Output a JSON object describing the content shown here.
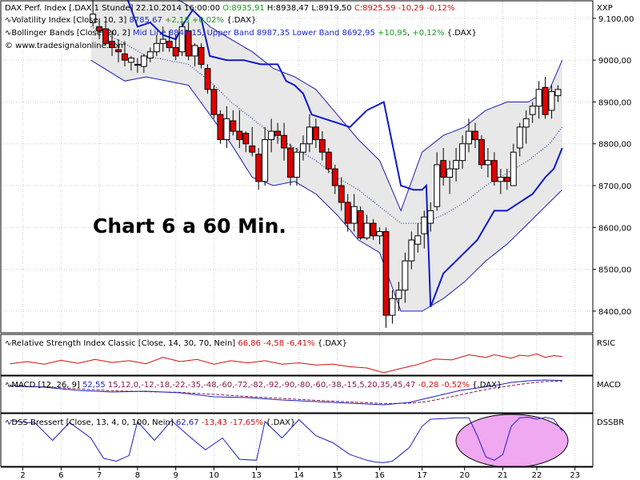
{
  "chart_data": {
    "type": "candlestick",
    "symbol": "DAX Perf. Index [.DAX  1 Stunde]",
    "timestamp": "22.10.2014 16:00:00",
    "ohlc_text": {
      "open": "O:8935,91",
      "high": "H:8938,47",
      "low": "L:8919,50",
      "close": "C:8925,59",
      "change": "-10,29",
      "change_pct": "-0,12%"
    },
    "indicator_lines": [
      {
        "name": "Volatility Index [Close, 10, 3]",
        "value": "8785,67",
        "change": "+2,18",
        "change_pct": "+0,02%",
        "symbol": "{.DAX}"
      },
      {
        "name": "Bollinger Bands [Close, 20, 2]",
        "mid": "Mid Line 8840,15",
        "upper": "Upper Band 8987,35",
        "lower": "Lower Band 8692,95",
        "change": "+10,95",
        "change_pct": "+0,12%",
        "symbol": "{.DAX}"
      }
    ],
    "copyright": "© www.tradesignalonline.com",
    "annotation": "Chart 6 a 60 Min.",
    "price_axis": {
      "label": "XXP",
      "ylim": [
        8350,
        9140
      ],
      "ticks": [
        "9.100,00",
        "9000,00",
        "8900,00",
        "8800,00",
        "8700,00",
        "8600,00",
        "8500,00",
        "8400,00"
      ],
      "tick_values": [
        9100,
        9000,
        8900,
        8800,
        8700,
        8600,
        8500,
        8400
      ]
    },
    "x_axis": {
      "ticks": [
        "2",
        "6",
        "7",
        "8",
        "9",
        "10",
        "13",
        "14",
        "15",
        "16",
        "17",
        "20",
        "21",
        "22",
        "23"
      ],
      "tick_x": [
        1,
        10,
        19,
        28,
        37,
        46,
        56,
        66,
        75,
        85,
        95,
        105,
        114,
        122,
        131
      ],
      "range": [
        -4,
        135
      ]
    },
    "candles": [
      {
        "x": 17.5,
        "o": 9090,
        "h": 9150,
        "l": 9080,
        "c": 9110
      },
      {
        "x": 19,
        "o": 9080,
        "h": 9100,
        "l": 9050,
        "c": 9070
      },
      {
        "x": 20.5,
        "o": 9075,
        "h": 9090,
        "l": 9035,
        "c": 9040
      },
      {
        "x": 22,
        "o": 9045,
        "h": 9070,
        "l": 9010,
        "c": 9030
      },
      {
        "x": 23.5,
        "o": 9025,
        "h": 9050,
        "l": 8995,
        "c": 9020
      },
      {
        "x": 25,
        "o": 9015,
        "h": 9045,
        "l": 8985,
        "c": 9000
      },
      {
        "x": 26.5,
        "o": 8995,
        "h": 9010,
        "l": 8975,
        "c": 9005
      },
      {
        "x": 28,
        "o": 8990,
        "h": 9005,
        "l": 8970,
        "c": 8990
      },
      {
        "x": 29.5,
        "o": 8985,
        "h": 9015,
        "l": 8970,
        "c": 9010
      },
      {
        "x": 31,
        "o": 9005,
        "h": 9030,
        "l": 8995,
        "c": 9020
      },
      {
        "x": 32.5,
        "o": 9020,
        "h": 9060,
        "l": 9010,
        "c": 9040
      },
      {
        "x": 34,
        "o": 9040,
        "h": 9080,
        "l": 9020,
        "c": 9050
      },
      {
        "x": 35.5,
        "o": 9045,
        "h": 9070,
        "l": 9020,
        "c": 9030
      },
      {
        "x": 37,
        "o": 9030,
        "h": 9060,
        "l": 9000,
        "c": 9010
      },
      {
        "x": 38.5,
        "o": 9020,
        "h": 9090,
        "l": 9010,
        "c": 9080
      },
      {
        "x": 40,
        "o": 9070,
        "h": 9090,
        "l": 9000,
        "c": 9010
      },
      {
        "x": 41.5,
        "o": 9010,
        "h": 9040,
        "l": 8985,
        "c": 9035
      },
      {
        "x": 43,
        "o": 9030,
        "h": 9040,
        "l": 8980,
        "c": 8990
      },
      {
        "x": 44.5,
        "o": 8980,
        "h": 8990,
        "l": 8920,
        "c": 8930
      },
      {
        "x": 46,
        "o": 8930,
        "h": 8940,
        "l": 8860,
        "c": 8870
      },
      {
        "x": 47.5,
        "o": 8870,
        "h": 8880,
        "l": 8800,
        "c": 8810
      },
      {
        "x": 49,
        "o": 8810,
        "h": 8890,
        "l": 8790,
        "c": 8860
      },
      {
        "x": 50.5,
        "o": 8855,
        "h": 8880,
        "l": 8820,
        "c": 8830
      },
      {
        "x": 52,
        "o": 8830,
        "h": 8880,
        "l": 8790,
        "c": 8810
      },
      {
        "x": 53.5,
        "o": 8825,
        "h": 8830,
        "l": 8780,
        "c": 8800
      },
      {
        "x": 55,
        "o": 8795,
        "h": 8840,
        "l": 8770,
        "c": 8780
      },
      {
        "x": 56.5,
        "o": 8775,
        "h": 8790,
        "l": 8690,
        "c": 8710
      },
      {
        "x": 58,
        "o": 8710,
        "h": 8840,
        "l": 8700,
        "c": 8810
      },
      {
        "x": 59.5,
        "o": 8810,
        "h": 8860,
        "l": 8780,
        "c": 8830
      },
      {
        "x": 61,
        "o": 8830,
        "h": 8850,
        "l": 8800,
        "c": 8820
      },
      {
        "x": 62.5,
        "o": 8820,
        "h": 8850,
        "l": 8760,
        "c": 8790
      },
      {
        "x": 64,
        "o": 8790,
        "h": 8800,
        "l": 8700,
        "c": 8720
      },
      {
        "x": 65.5,
        "o": 8720,
        "h": 8790,
        "l": 8700,
        "c": 8780
      },
      {
        "x": 67,
        "o": 8780,
        "h": 8820,
        "l": 8760,
        "c": 8800
      },
      {
        "x": 68.5,
        "o": 8800,
        "h": 8870,
        "l": 8780,
        "c": 8840
      },
      {
        "x": 70,
        "o": 8840,
        "h": 8860,
        "l": 8790,
        "c": 8810
      },
      {
        "x": 71.5,
        "o": 8810,
        "h": 8830,
        "l": 8760,
        "c": 8780
      },
      {
        "x": 73,
        "o": 8780,
        "h": 8790,
        "l": 8730,
        "c": 8740
      },
      {
        "x": 74.5,
        "o": 8740,
        "h": 8750,
        "l": 8680,
        "c": 8700
      },
      {
        "x": 76,
        "o": 8700,
        "h": 8720,
        "l": 8640,
        "c": 8660
      },
      {
        "x": 77.5,
        "o": 8660,
        "h": 8680,
        "l": 8590,
        "c": 8610
      },
      {
        "x": 79,
        "o": 8610,
        "h": 8680,
        "l": 8590,
        "c": 8650
      },
      {
        "x": 80.5,
        "o": 8640,
        "h": 8650,
        "l": 8570,
        "c": 8575
      },
      {
        "x": 82,
        "o": 8575,
        "h": 8630,
        "l": 8570,
        "c": 8610
      },
      {
        "x": 83.5,
        "o": 8610,
        "h": 8620,
        "l": 8570,
        "c": 8580
      },
      {
        "x": 85,
        "o": 8580,
        "h": 8600,
        "l": 8560,
        "c": 8590
      },
      {
        "x": 86.5,
        "o": 8590,
        "h": 8600,
        "l": 8360,
        "c": 8390
      },
      {
        "x": 88,
        "o": 8390,
        "h": 8450,
        "l": 8370,
        "c": 8430
      },
      {
        "x": 89.5,
        "o": 8430,
        "h": 8470,
        "l": 8400,
        "c": 8450
      },
      {
        "x": 91,
        "o": 8450,
        "h": 8540,
        "l": 8420,
        "c": 8520
      },
      {
        "x": 92.5,
        "o": 8520,
        "h": 8590,
        "l": 8500,
        "c": 8570
      },
      {
        "x": 94,
        "o": 8560,
        "h": 8610,
        "l": 8540,
        "c": 8580
      },
      {
        "x": 95.5,
        "o": 8585,
        "h": 8640,
        "l": 8550,
        "c": 8625
      },
      {
        "x": 97,
        "o": 8610,
        "h": 8660,
        "l": 8590,
        "c": 8640
      },
      {
        "x": 98.5,
        "o": 8650,
        "h": 8780,
        "l": 8640,
        "c": 8750
      },
      {
        "x": 100,
        "o": 8760,
        "h": 8790,
        "l": 8700,
        "c": 8720
      },
      {
        "x": 101.5,
        "o": 8720,
        "h": 8760,
        "l": 8680,
        "c": 8740
      },
      {
        "x": 103,
        "o": 8740,
        "h": 8790,
        "l": 8710,
        "c": 8760
      },
      {
        "x": 104.5,
        "o": 8760,
        "h": 8820,
        "l": 8740,
        "c": 8800
      },
      {
        "x": 106,
        "o": 8800,
        "h": 8860,
        "l": 8780,
        "c": 8830
      },
      {
        "x": 107.5,
        "o": 8830,
        "h": 8850,
        "l": 8790,
        "c": 8810
      },
      {
        "x": 109,
        "o": 8810,
        "h": 8820,
        "l": 8740,
        "c": 8750
      },
      {
        "x": 110.5,
        "o": 8750,
        "h": 8790,
        "l": 8720,
        "c": 8760
      },
      {
        "x": 112,
        "o": 8760,
        "h": 8780,
        "l": 8700,
        "c": 8710
      },
      {
        "x": 113.5,
        "o": 8710,
        "h": 8740,
        "l": 8680,
        "c": 8720
      },
      {
        "x": 115,
        "o": 8720,
        "h": 8740,
        "l": 8690,
        "c": 8710
      },
      {
        "x": 116.5,
        "o": 8700,
        "h": 8800,
        "l": 8700,
        "c": 8780
      },
      {
        "x": 118,
        "o": 8790,
        "h": 8850,
        "l": 8770,
        "c": 8840
      },
      {
        "x": 119.5,
        "o": 8840,
        "h": 8880,
        "l": 8800,
        "c": 8860
      },
      {
        "x": 121,
        "o": 8870,
        "h": 8900,
        "l": 8850,
        "c": 8890
      },
      {
        "x": 122.5,
        "o": 8890,
        "h": 8950,
        "l": 8860,
        "c": 8930
      },
      {
        "x": 124,
        "o": 8935,
        "h": 8960,
        "l": 8860,
        "c": 8870
      },
      {
        "x": 125.5,
        "o": 8880,
        "h": 8940,
        "l": 8860,
        "c": 8925
      },
      {
        "x": 127,
        "o": 8915,
        "h": 8940,
        "l": 8900,
        "c": 8930
      }
    ],
    "bollinger": {
      "x": [
        17,
        25,
        30,
        35,
        40,
        45,
        50,
        55,
        60,
        65,
        70,
        75,
        80,
        85,
        90,
        95,
        100,
        105,
        110,
        115,
        120,
        125,
        128
      ],
      "upper": [
        9150,
        9160,
        9165,
        9160,
        9130,
        9080,
        9050,
        9020,
        8980,
        8960,
        8930,
        8870,
        8810,
        8760,
        8640,
        8780,
        8820,
        8840,
        8880,
        8900,
        8900,
        8930,
        9000
      ],
      "mid": [
        9080,
        9040,
        9010,
        9000,
        8990,
        8950,
        8900,
        8860,
        8820,
        8790,
        8760,
        8720,
        8690,
        8650,
        8610,
        8610,
        8630,
        8660,
        8700,
        8730,
        8760,
        8800,
        8840
      ],
      "lower": [
        9000,
        8950,
        8960,
        8950,
        8940,
        8870,
        8800,
        8720,
        8700,
        8710,
        8680,
        8630,
        8570,
        8540,
        8400,
        8400,
        8430,
        8470,
        8520,
        8560,
        8610,
        8660,
        8690
      ]
    },
    "volatility_index": {
      "x": [
        17,
        23,
        28,
        31,
        34,
        37,
        39,
        41,
        43,
        45,
        49,
        53,
        57,
        61,
        63,
        65,
        67,
        69,
        72,
        75,
        78,
        82,
        86,
        90,
        93,
        95,
        96,
        97,
        100,
        104,
        108,
        112,
        115,
        118,
        121,
        124,
        126,
        128
      ],
      "values": [
        9210,
        9220,
        9080,
        9090,
        9060,
        9050,
        9090,
        9120,
        9100,
        9010,
        9000,
        9000,
        8990,
        8990,
        8950,
        8940,
        8920,
        8870,
        8860,
        8850,
        8840,
        8880,
        8900,
        8700,
        8690,
        8690,
        8700,
        8410,
        8490,
        8530,
        8570,
        8640,
        8640,
        8660,
        8680,
        8720,
        8740,
        8790
      ]
    },
    "rsi": {
      "label": "RSIC",
      "legend": "Relative Strength Index Classic [Close, 14, 30, 70, Nein]",
      "value": "66,86",
      "change": "-4,58",
      "change_pct": "-6,41%",
      "symbol": "{.DAX}",
      "ylim": [
        20,
        80
      ],
      "x": [
        -2,
        2,
        6,
        10,
        14,
        18,
        22,
        26,
        30,
        34,
        38,
        42,
        46,
        50,
        54,
        58,
        62,
        66,
        70,
        74,
        78,
        82,
        86,
        90,
        94,
        98,
        102,
        106,
        110,
        112,
        116,
        118,
        120,
        122,
        124,
        126,
        128
      ],
      "values": [
        45,
        50,
        44,
        53,
        46,
        55,
        48,
        52,
        45,
        60,
        50,
        55,
        44,
        52,
        47,
        52,
        44,
        47,
        42,
        44,
        38,
        35,
        24,
        34,
        43,
        56,
        54,
        66,
        60,
        66,
        58,
        65,
        63,
        68,
        60,
        64,
        62
      ]
    },
    "macd": {
      "label": "MACD",
      "legend": "MACD [12, 26, 9]",
      "value": "52,55",
      "trigger": [
        15,
        12,
        0,
        -12,
        -18,
        -22,
        -35,
        -48,
        -60,
        -72,
        -82,
        -92,
        -90,
        -80,
        -60,
        -38,
        -15,
        5,
        20,
        35,
        45,
        47
      ],
      "change": "-0,28",
      "change_pct": "-0,52%",
      "symbol": "{.DAX}",
      "ylim": [
        -140,
        70
      ],
      "x": [
        -2,
        6,
        14,
        22,
        30,
        38,
        46,
        54,
        62,
        70,
        78,
        86,
        92,
        96,
        100,
        104,
        108,
        112,
        116,
        120,
        124,
        128
      ],
      "macd": [
        20,
        10,
        -10,
        -20,
        -15,
        -25,
        -50,
        -55,
        -70,
        -80,
        -90,
        -100,
        -85,
        -60,
        -35,
        -10,
        5,
        20,
        40,
        50,
        55,
        52
      ]
    },
    "dss": {
      "label": "DSSBR",
      "legend": "DSS Bressert [Close, 13, 4, 0, 100, Nein]",
      "value": "62,67",
      "change": "-13,43",
      "change_pct": "-17,65%",
      "symbol": "{.DAX}",
      "ylim": [
        0,
        100
      ],
      "x": [
        -2,
        4,
        8,
        12,
        17,
        20,
        23,
        26,
        28,
        32,
        36,
        40,
        44,
        48,
        52,
        56,
        58,
        62,
        66,
        70,
        74,
        78,
        82,
        84,
        86,
        88,
        92,
        95,
        97,
        100,
        103,
        106,
        108,
        110,
        112,
        114,
        116,
        118,
        120,
        122,
        124,
        126,
        128
      ],
      "values": [
        92,
        86,
        50,
        88,
        55,
        12,
        6,
        18,
        90,
        50,
        92,
        60,
        30,
        55,
        10,
        8,
        90,
        55,
        94,
        60,
        45,
        20,
        8,
        4,
        3,
        6,
        35,
        80,
        95,
        96,
        98,
        98,
        60,
        15,
        8,
        20,
        80,
        98,
        99,
        95,
        99,
        95,
        70
      ]
    }
  }
}
